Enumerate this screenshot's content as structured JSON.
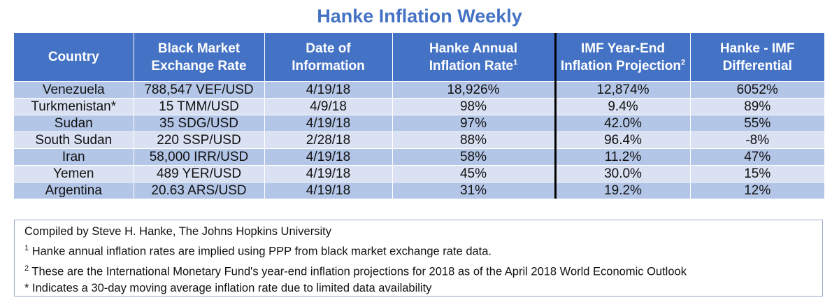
{
  "title": "Hanke Inflation Weekly",
  "table": {
    "headers": [
      {
        "line1": "Country",
        "line2": "",
        "sup": ""
      },
      {
        "line1": "Black Market",
        "line2": "Exchange Rate",
        "sup": ""
      },
      {
        "line1": "Date of",
        "line2": "Information",
        "sup": ""
      },
      {
        "line1": "Hanke Annual",
        "line2": "Inflation Rate",
        "sup": "1"
      },
      {
        "line1": "IMF Year-End",
        "line2": "Inflation Projection",
        "sup": "2"
      },
      {
        "line1": "Hanke - IMF",
        "line2": "Differential",
        "sup": ""
      }
    ],
    "rows": [
      [
        "Venezuela",
        "788,547 VEF/USD",
        "4/19/18",
        "18,926%",
        "12,874%",
        "6052%"
      ],
      [
        "Turkmenistan*",
        "15 TMM/USD",
        "4/9/18",
        "98%",
        "9.4%",
        "89%"
      ],
      [
        "Sudan",
        "35 SDG/USD",
        "4/19/18",
        "97%",
        "42.0%",
        "55%"
      ],
      [
        "South Sudan",
        "220 SSP/USD",
        "2/28/18",
        "88%",
        "96.4%",
        "-8%"
      ],
      [
        "Iran",
        "58,000 IRR/USD",
        "4/19/18",
        "58%",
        "11.2%",
        "47%"
      ],
      [
        "Yemen",
        "489 YER/USD",
        "4/19/18",
        "45%",
        "30.0%",
        "15%"
      ],
      [
        "Argentina",
        "20.63 ARS/USD",
        "4/19/18",
        "31%",
        "19.2%",
        "12%"
      ]
    ]
  },
  "notes": {
    "compiled": "Compiled by Steve H. Hanke, The Johns Hopkins University",
    "note1_marker": "1",
    "note1": " Hanke annual inflation rates are implied using PPP from black market exchange rate data.",
    "note2_marker": "2",
    "note2": " These are the International Monetary Fund's year-end inflation projections for 2018 as of the April 2018 World Economic Outlook",
    "note3": "* Indicates a 30-day moving average inflation rate due to limited data availability"
  },
  "colors": {
    "title": "#4472c4",
    "header_bg": "#4472c4",
    "row_dark": "#b4c6e7",
    "row_light": "#d9e1f2",
    "divider": "#000000"
  }
}
